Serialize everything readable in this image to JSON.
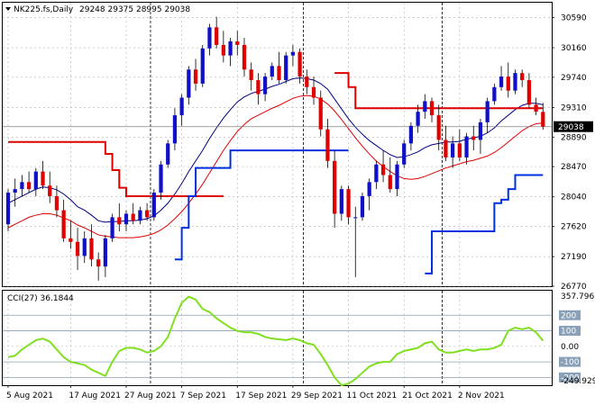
{
  "header": {
    "symbol": "NK225.fs,Daily",
    "ohlc": "29248 29375 28995 29038"
  },
  "colors": {
    "bull": "#1010c8",
    "bear": "#e00000",
    "ema_fast": "#000080",
    "ema_slow": "#e00000",
    "stop_high": "#e00000",
    "stop_low": "#0030e0",
    "cci": "#80e020",
    "price_box": "#000000"
  },
  "chart_data": [
    {
      "type": "candlestick",
      "title": "NK225.fs,Daily",
      "ylim": [
        26770,
        30800
      ],
      "y_ticks": [
        "30590",
        "30160",
        "29740",
        "29310",
        "28890",
        "28470",
        "28040",
        "27620",
        "27190",
        "26770"
      ],
      "x_ticks": [
        "5 Aug 2021",
        "17 Aug 2021",
        "27 Aug 2021",
        "7 Sep 2021",
        "17 Sep 2021",
        "29 Sep 2021",
        "11 Oct 2021",
        "21 Oct 2021",
        "2 Nov 2021"
      ],
      "current_price_label": "29038",
      "current_price": 29038,
      "candles": [
        [
          27650,
          28150,
          27550,
          28100
        ],
        [
          28100,
          28300,
          27900,
          28150
        ],
        [
          28150,
          28350,
          28050,
          28250
        ],
        [
          28250,
          28400,
          28100,
          28150
        ],
        [
          28150,
          28450,
          28050,
          28400
        ],
        [
          28400,
          28550,
          28150,
          28200
        ],
        [
          28200,
          28400,
          27950,
          28050
        ],
        [
          28050,
          28200,
          27750,
          27850
        ],
        [
          27850,
          28000,
          27400,
          27450
        ],
        [
          27450,
          27700,
          27300,
          27400
        ],
        [
          27400,
          27600,
          27000,
          27200
        ],
        [
          27200,
          27550,
          27100,
          27450
        ],
        [
          27450,
          27650,
          27050,
          27150
        ],
        [
          27150,
          27250,
          26850,
          27050
        ],
        [
          27050,
          27500,
          26900,
          27450
        ],
        [
          27450,
          27800,
          27400,
          27750
        ],
        [
          27750,
          27950,
          27550,
          27650
        ],
        [
          27650,
          27850,
          27550,
          27800
        ],
        [
          27800,
          27950,
          27650,
          27700
        ],
        [
          27700,
          27900,
          27650,
          27850
        ],
        [
          27850,
          27950,
          27700,
          27750
        ],
        [
          27750,
          28150,
          27700,
          28100
        ],
        [
          28100,
          28550,
          28000,
          28500
        ],
        [
          28500,
          28850,
          28450,
          28800
        ],
        [
          28800,
          29300,
          28700,
          29200
        ],
        [
          29200,
          29500,
          29050,
          29450
        ],
        [
          29450,
          29900,
          29350,
          29850
        ],
        [
          29850,
          30000,
          29550,
          29650
        ],
        [
          29650,
          30200,
          29600,
          30150
        ],
        [
          30150,
          30500,
          30050,
          30450
        ],
        [
          30450,
          30600,
          30150,
          30200
        ],
        [
          30200,
          30400,
          29950,
          30050
        ],
        [
          30050,
          30300,
          29900,
          30250
        ],
        [
          30250,
          30400,
          30050,
          30200
        ],
        [
          30200,
          30300,
          29750,
          29850
        ],
        [
          29850,
          29950,
          29550,
          29700
        ],
        [
          29700,
          29800,
          29350,
          29500
        ],
        [
          29500,
          29800,
          29400,
          29750
        ],
        [
          29750,
          29950,
          29700,
          29900
        ],
        [
          29900,
          30100,
          29650,
          29700
        ],
        [
          29700,
          30100,
          29650,
          30050
        ],
        [
          30050,
          30200,
          29900,
          30100
        ],
        [
          30100,
          30150,
          29650,
          29750
        ],
        [
          29750,
          29850,
          29500,
          29600
        ],
        [
          29600,
          29750,
          29350,
          29450
        ],
        [
          29450,
          29550,
          28900,
          29000
        ],
        [
          29000,
          29150,
          28450,
          28550
        ],
        [
          28550,
          28700,
          27600,
          27800
        ],
        [
          27800,
          28200,
          27700,
          28150
        ],
        [
          28150,
          28200,
          27650,
          27750
        ],
        [
          27750,
          27900,
          26900,
          27750
        ],
        [
          27750,
          28100,
          27700,
          28050
        ],
        [
          28050,
          28300,
          27850,
          28250
        ],
        [
          28250,
          28550,
          28150,
          28500
        ],
        [
          28500,
          28700,
          28250,
          28350
        ],
        [
          28350,
          28600,
          28100,
          28150
        ],
        [
          28150,
          28550,
          28050,
          28500
        ],
        [
          28500,
          28850,
          28450,
          28800
        ],
        [
          28800,
          29100,
          28700,
          29050
        ],
        [
          29050,
          29350,
          28950,
          29250
        ],
        [
          29250,
          29500,
          29150,
          29400
        ],
        [
          29400,
          29450,
          29100,
          29200
        ],
        [
          29200,
          29350,
          28700,
          28850
        ],
        [
          28850,
          29050,
          28550,
          28600
        ],
        [
          28600,
          28900,
          28450,
          28800
        ],
        [
          28800,
          29000,
          28550,
          28600
        ],
        [
          28600,
          28950,
          28500,
          28900
        ],
        [
          28900,
          29050,
          28700,
          28850
        ],
        [
          28850,
          29150,
          28650,
          29100
        ],
        [
          29100,
          29450,
          28950,
          29400
        ],
        [
          29400,
          29650,
          29350,
          29600
        ],
        [
          29600,
          29900,
          29550,
          29750
        ],
        [
          29750,
          29950,
          29450,
          29550
        ],
        [
          29550,
          29850,
          29500,
          29800
        ],
        [
          29800,
          29850,
          29600,
          29700
        ],
        [
          29700,
          29800,
          29300,
          29350
        ],
        [
          29350,
          29450,
          29200,
          29250
        ],
        [
          29248,
          29375,
          28995,
          29038
        ]
      ],
      "series": [
        {
          "type": "line",
          "style": "ema_fast",
          "values": [
            27950,
            28000,
            28050,
            28100,
            28150,
            28180,
            28170,
            28140,
            28080,
            28000,
            27900,
            27850,
            27780,
            27700,
            27680,
            27690,
            27690,
            27700,
            27700,
            27710,
            27730,
            27770,
            27850,
            27950,
            28080,
            28230,
            28400,
            28550,
            28700,
            28870,
            29020,
            29160,
            29280,
            29390,
            29460,
            29510,
            29540,
            29570,
            29610,
            29640,
            29680,
            29720,
            29730,
            29720,
            29700,
            29650,
            29570,
            29430,
            29290,
            29150,
            29030,
            28930,
            28840,
            28770,
            28700,
            28640,
            28600,
            28610,
            28640,
            28680,
            28740,
            28780,
            28800,
            28820,
            28820,
            28830,
            28860,
            28880,
            28900,
            28950,
            29020,
            29120,
            29200,
            29280,
            29340,
            29370,
            29370,
            29350
          ]
        },
        {
          "type": "line",
          "style": "ema_slow",
          "values": [
            27600,
            27650,
            27700,
            27750,
            27780,
            27800,
            27800,
            27780,
            27740,
            27700,
            27640,
            27600,
            27550,
            27500,
            27480,
            27470,
            27460,
            27460,
            27460,
            27470,
            27490,
            27520,
            27570,
            27640,
            27730,
            27830,
            27950,
            28080,
            28220,
            28380,
            28540,
            28700,
            28840,
            28970,
            29070,
            29150,
            29200,
            29250,
            29300,
            29340,
            29390,
            29440,
            29470,
            29480,
            29470,
            29430,
            29360,
            29260,
            29140,
            29010,
            28880,
            28760,
            28650,
            28550,
            28470,
            28400,
            28340,
            28300,
            28290,
            28300,
            28330,
            28370,
            28410,
            28450,
            28480,
            28510,
            28540,
            28560,
            28590,
            28620,
            28670,
            28740,
            28820,
            28900,
            28980,
            29040,
            29080,
            29090
          ]
        },
        {
          "type": "step",
          "style": "stop_high",
          "values": [
            28820,
            28820,
            28820,
            28820,
            28820,
            28820,
            28820,
            28820,
            28820,
            28820,
            28820,
            28820,
            28820,
            28820,
            28650,
            28420,
            28170,
            28050,
            28050,
            28050,
            28050,
            28050,
            28050,
            28050,
            28050,
            28050,
            28050,
            28050,
            28050,
            28050,
            28050,
            28050,
            null,
            null,
            null,
            null,
            null,
            null,
            null,
            null,
            null,
            null,
            null,
            null,
            null,
            null,
            null,
            29800,
            29800,
            29600,
            29300,
            29300,
            29300,
            29300,
            29300,
            29300,
            29300,
            29300,
            29300,
            29300,
            29300,
            29300,
            29300,
            29300,
            29300,
            29300,
            29300,
            29300,
            29300,
            29300,
            29300,
            29300,
            29300,
            29300,
            29300,
            29300,
            29300,
            29300
          ]
        },
        {
          "type": "step",
          "style": "stop_low",
          "values": [
            null,
            null,
            null,
            null,
            null,
            null,
            null,
            null,
            null,
            null,
            null,
            null,
            null,
            null,
            null,
            null,
            null,
            null,
            null,
            null,
            null,
            null,
            null,
            null,
            27150,
            27600,
            28050,
            28450,
            28450,
            28450,
            28450,
            28450,
            28700,
            28700,
            28700,
            28700,
            28700,
            28700,
            28700,
            28700,
            28700,
            28700,
            28700,
            28700,
            28700,
            28700,
            28700,
            28700,
            28700,
            28700,
            null,
            null,
            null,
            null,
            null,
            null,
            null,
            null,
            null,
            null,
            26950,
            27550,
            27550,
            27550,
            27550,
            27550,
            27550,
            27550,
            27550,
            27550,
            27950,
            28000,
            28150,
            28350,
            28350,
            28350,
            28350,
            28350
          ]
        }
      ]
    },
    {
      "type": "line",
      "title": "CCI(27) 36.1844",
      "ylim": [
        -249.929,
        357.796
      ],
      "y_ticks": [
        "357.796",
        "200",
        "100",
        "0.00",
        "-100",
        "-200",
        "-249.929"
      ],
      "levels": [
        200,
        100,
        -100,
        -200
      ],
      "series": [
        {
          "name": "CCI(27)",
          "values": [
            -70,
            -60,
            -20,
            10,
            40,
            50,
            30,
            -20,
            -70,
            -100,
            -110,
            -120,
            -150,
            -170,
            -190,
            -100,
            -30,
            -10,
            -10,
            -20,
            -40,
            -30,
            0,
            60,
            180,
            280,
            320,
            300,
            240,
            220,
            180,
            150,
            120,
            100,
            90,
            90,
            80,
            60,
            50,
            45,
            40,
            50,
            40,
            20,
            10,
            -50,
            -120,
            -200,
            -250,
            -240,
            -210,
            -170,
            -130,
            -110,
            -100,
            -100,
            -50,
            -30,
            -20,
            -10,
            20,
            30,
            -20,
            -40,
            -40,
            -30,
            -20,
            -30,
            -20,
            -20,
            -10,
            10,
            100,
            120,
            110,
            120,
            90,
            36.1844
          ]
        }
      ]
    }
  ]
}
